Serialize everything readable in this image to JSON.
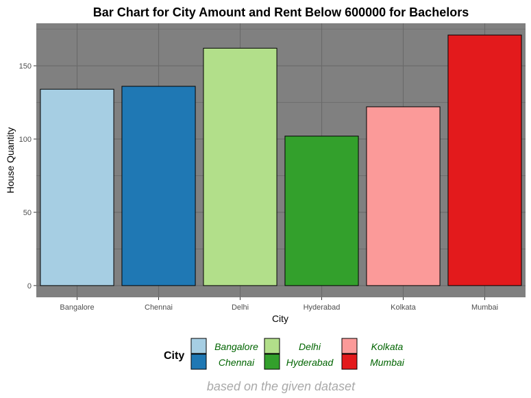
{
  "chart_data": {
    "type": "bar",
    "title": "Bar Chart for City Amount and Rent Below 600000 for Bachelors",
    "xlabel": "City",
    "ylabel": "House Quantity",
    "categories": [
      "Bangalore",
      "Chennai",
      "Delhi",
      "Hyderabad",
      "Kolkata",
      "Mumbai"
    ],
    "values": [
      134,
      136,
      162,
      102,
      122,
      171
    ],
    "colors": [
      "#a6cee3",
      "#1f78b4",
      "#b2df8a",
      "#33a02c",
      "#fb9a99",
      "#e31a1c"
    ],
    "ylim": [
      -8,
      179
    ],
    "yticks": [
      0,
      50,
      100,
      150
    ],
    "grid": true,
    "panel_background": "#808080",
    "grid_color": "#696969",
    "legend": {
      "title": "City",
      "position": "bottom",
      "label_color": "#006400",
      "entries": [
        "Bangalore",
        "Chennai",
        "Delhi",
        "Hyderabad",
        "Kolkata",
        "Mumbai"
      ]
    },
    "caption": "based on the given dataset",
    "caption_color": "#a9a9a9"
  }
}
